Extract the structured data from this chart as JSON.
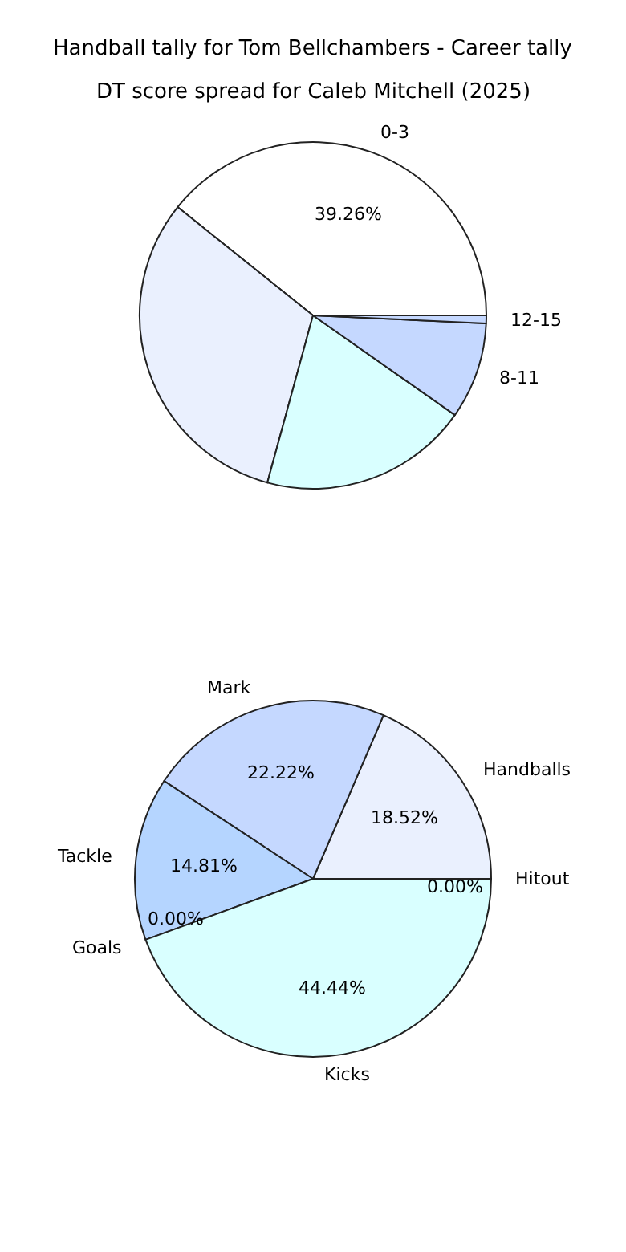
{
  "chart_data": [
    {
      "type": "pie",
      "title": "Handball tally for Tom Bellchambers - Career tally",
      "categories": [
        "Handballs",
        "Mark",
        "Tackle",
        "Goals",
        "Kicks",
        "Hitout"
      ],
      "values": [
        18.52,
        22.22,
        14.81,
        0,
        44.44,
        0
      ],
      "colors": [
        "#eaf0fe",
        "#c5d8ff",
        "#b5d5ff",
        "#ffffff",
        "#d9ffff",
        "#ffffff"
      ],
      "value_labels": [
        "18.52%",
        "22.22%",
        "14.81%",
        "0.00%",
        "44.44%",
        "0.00%"
      ],
      "legend": false
    },
    {
      "type": "pie",
      "title": "DT score spread for Caleb Mitchell (2025)",
      "categories": [
        "0-3",
        null,
        null,
        "8-11",
        "12-15"
      ],
      "values": [
        39.26,
        31.5,
        19.5,
        9.0,
        0.74
      ],
      "colors": [
        "#ffffff",
        "#eaf0fe",
        "#d9ffff",
        "#c5d8ff",
        "#c5d8ff"
      ],
      "value_labels": [
        "39.26%",
        null,
        null,
        null,
        null
      ],
      "legend": false
    }
  ]
}
